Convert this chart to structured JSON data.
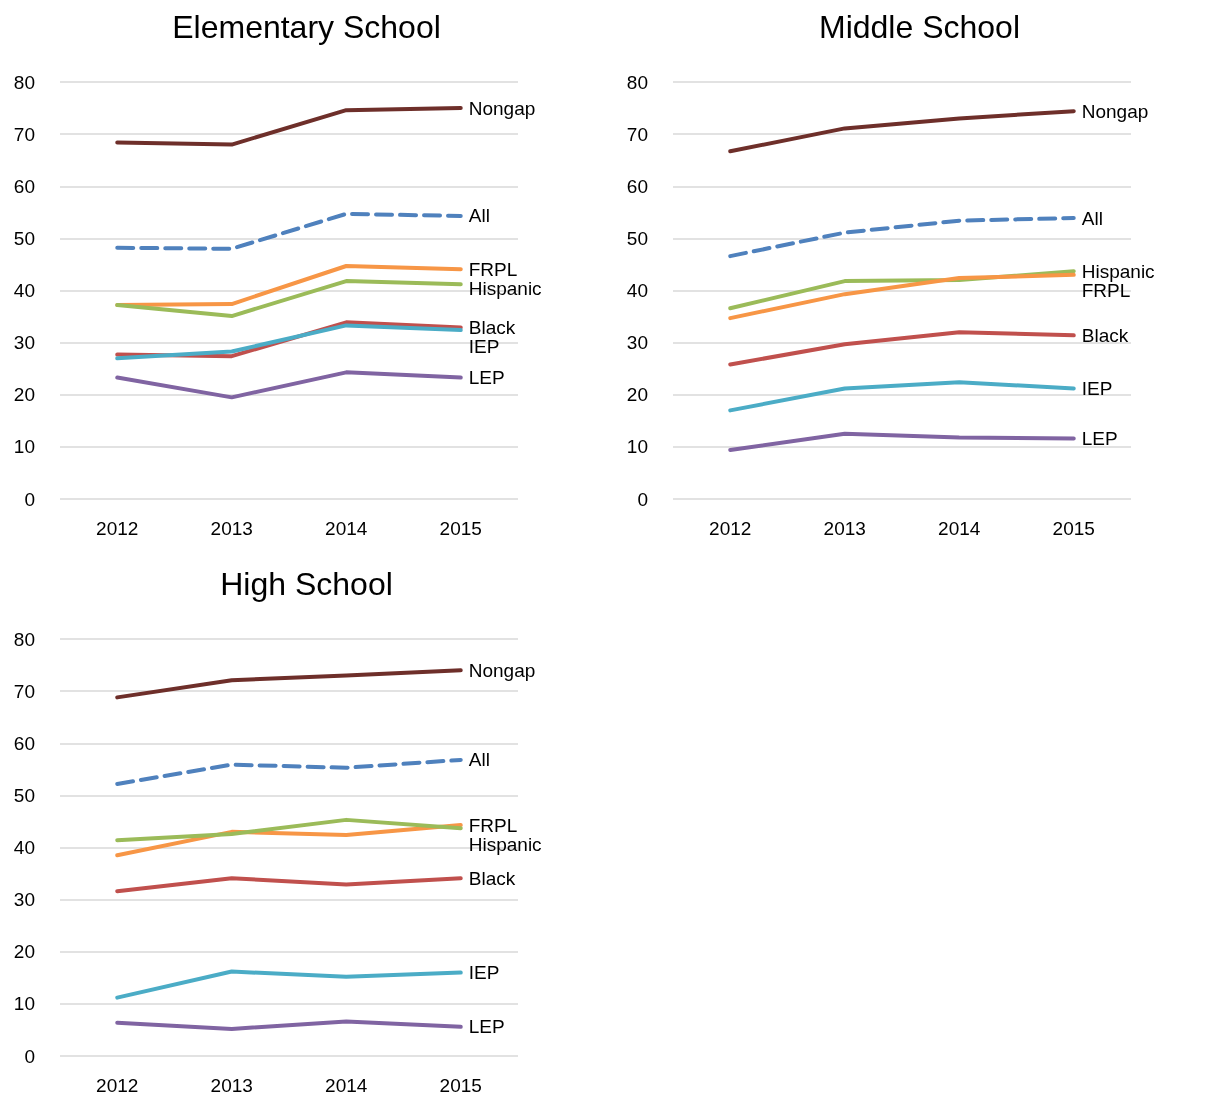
{
  "chart_data": [
    {
      "type": "line",
      "title": "Elementary School",
      "categories": [
        "2012",
        "2013",
        "2014",
        "2015"
      ],
      "ylim": [
        0,
        80
      ],
      "yticks": [
        0,
        10,
        20,
        30,
        40,
        50,
        60,
        70,
        80
      ],
      "grid": "y",
      "marker": "none",
      "series": [
        {
          "name": "Nongap",
          "color": "#6e2f2a",
          "values": [
            68.4,
            68.0,
            74.6,
            75.0
          ]
        },
        {
          "name": "All",
          "color": "#4f81bd",
          "line_style": "dashed",
          "values": [
            48.2,
            48.0,
            54.7,
            54.3
          ]
        },
        {
          "name": "FRPL",
          "color": "#f79646",
          "values": [
            37.2,
            37.4,
            44.7,
            44.1
          ]
        },
        {
          "name": "Hispanic",
          "color": "#9bbb59",
          "values": [
            37.2,
            35.1,
            41.8,
            41.2
          ]
        },
        {
          "name": "Black",
          "color": "#c0504d",
          "values": [
            27.7,
            27.4,
            33.9,
            32.9
          ]
        },
        {
          "name": "IEP",
          "color": "#4bacc6",
          "values": [
            27.0,
            28.3,
            33.3,
            32.4
          ]
        },
        {
          "name": "LEP",
          "color": "#8064a2",
          "values": [
            23.3,
            19.5,
            24.3,
            23.3
          ]
        }
      ]
    },
    {
      "type": "line",
      "title": "Middle School",
      "categories": [
        "2012",
        "2013",
        "2014",
        "2015"
      ],
      "ylim": [
        0,
        80
      ],
      "yticks": [
        0,
        10,
        20,
        30,
        40,
        50,
        60,
        70,
        80
      ],
      "grid": "y",
      "marker": "none",
      "series": [
        {
          "name": "Nongap",
          "color": "#6e2f2a",
          "values": [
            66.7,
            71.1,
            73.0,
            74.4
          ]
        },
        {
          "name": "All",
          "color": "#4f81bd",
          "line_style": "dashed",
          "values": [
            46.6,
            51.1,
            53.4,
            53.9
          ]
        },
        {
          "name": "Hispanic",
          "color": "#9bbb59",
          "values": [
            36.6,
            41.8,
            42.0,
            43.7
          ]
        },
        {
          "name": "FRPL",
          "color": "#f79646",
          "values": [
            34.7,
            39.3,
            42.4,
            43.0
          ]
        },
        {
          "name": "Black",
          "color": "#c0504d",
          "values": [
            25.8,
            29.7,
            32.0,
            31.4
          ]
        },
        {
          "name": "IEP",
          "color": "#4bacc6",
          "values": [
            17.0,
            21.2,
            22.4,
            21.2
          ]
        },
        {
          "name": "LEP",
          "color": "#8064a2",
          "values": [
            9.4,
            12.5,
            11.8,
            11.6
          ]
        }
      ]
    },
    {
      "type": "line",
      "title": "High School",
      "categories": [
        "2012",
        "2013",
        "2014",
        "2015"
      ],
      "ylim": [
        0,
        80
      ],
      "yticks": [
        0,
        10,
        20,
        30,
        40,
        50,
        60,
        70,
        80
      ],
      "grid": "y",
      "marker": "none",
      "series": [
        {
          "name": "Nongap",
          "color": "#6e2f2a",
          "values": [
            68.8,
            72.1,
            73.0,
            74.0
          ]
        },
        {
          "name": "All",
          "color": "#4f81bd",
          "line_style": "dashed",
          "values": [
            52.2,
            55.9,
            55.3,
            56.8
          ]
        },
        {
          "name": "FRPL",
          "color": "#f79646",
          "values": [
            38.5,
            43.0,
            42.4,
            44.3
          ]
        },
        {
          "name": "Hispanic",
          "color": "#9bbb59",
          "values": [
            41.4,
            42.6,
            45.3,
            43.7
          ]
        },
        {
          "name": "Black",
          "color": "#c0504d",
          "values": [
            31.6,
            34.1,
            32.9,
            34.1
          ]
        },
        {
          "name": "IEP",
          "color": "#4bacc6",
          "values": [
            11.2,
            16.2,
            15.2,
            16.0
          ]
        },
        {
          "name": "LEP",
          "color": "#8064a2",
          "values": [
            6.4,
            5.2,
            6.6,
            5.6
          ]
        }
      ]
    }
  ]
}
